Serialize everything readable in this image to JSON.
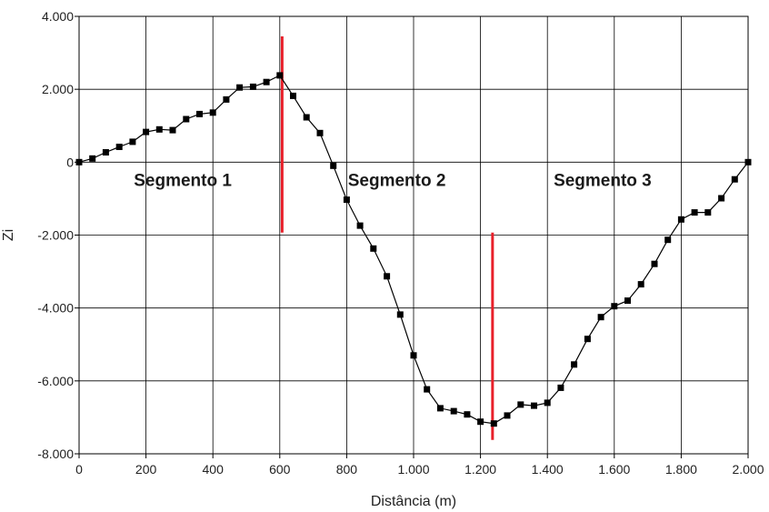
{
  "chart_data": {
    "type": "line",
    "xlabel": "Distância (m)",
    "ylabel": "Zi",
    "xlim": [
      0,
      2000
    ],
    "ylim": [
      -8000,
      4000
    ],
    "xticks": [
      0,
      200,
      400,
      600,
      800,
      1000,
      1200,
      1400,
      1600,
      1800,
      2000
    ],
    "xtick_labels": [
      "0",
      "200",
      "400",
      "600",
      "800",
      "1.000",
      "1.200",
      "1.400",
      "1.600",
      "1.800",
      "2.000"
    ],
    "yticks": [
      4000,
      2000,
      0,
      -2000,
      -4000,
      -6000,
      -8000
    ],
    "ytick_labels": [
      "4.000",
      "2.000",
      "0",
      "-2.000",
      "-4.000",
      "-6.000",
      "-8.000"
    ],
    "grid": true,
    "marker": "square",
    "series": [
      {
        "color": "#000000",
        "x": [
          0,
          40,
          80,
          120,
          160,
          200,
          240,
          280,
          320,
          360,
          400,
          440,
          480,
          520,
          560,
          600,
          640,
          680,
          720,
          760,
          800,
          840,
          880,
          920,
          960,
          1000,
          1040,
          1080,
          1120,
          1160,
          1200,
          1240,
          1280,
          1320,
          1360,
          1400,
          1440,
          1480,
          1520,
          1560,
          1600,
          1640,
          1680,
          1720,
          1760,
          1800,
          1840,
          1880,
          1920,
          1960,
          2000
        ],
        "y": [
          0,
          100,
          270,
          420,
          560,
          830,
          900,
          880,
          1180,
          1320,
          1360,
          1720,
          2050,
          2070,
          2200,
          2380,
          1820,
          1230,
          800,
          -100,
          -1030,
          -1740,
          -2370,
          -3130,
          -4180,
          -5300,
          -6230,
          -6750,
          -6830,
          -6920,
          -7120,
          -7170,
          -6950,
          -6650,
          -6680,
          -6600,
          -6190,
          -5550,
          -4850,
          -4250,
          -3950,
          -3800,
          -3350,
          -2790,
          -2130,
          -1570,
          -1380,
          -1380,
          -990,
          -470,
          0
        ]
      }
    ],
    "dividers": [
      {
        "x": 607,
        "y_top": 3450,
        "y_bottom": -1930,
        "color": "#e8202a"
      },
      {
        "x": 1236,
        "y_top": -1930,
        "y_bottom": -7620,
        "color": "#e8202a"
      }
    ],
    "annotations": [
      {
        "text": "Segmento 1",
        "x": 310,
        "y": -500
      },
      {
        "text": "Segmento 2",
        "x": 950,
        "y": -500
      },
      {
        "text": "Segmento 3",
        "x": 1565,
        "y": -500
      }
    ]
  }
}
